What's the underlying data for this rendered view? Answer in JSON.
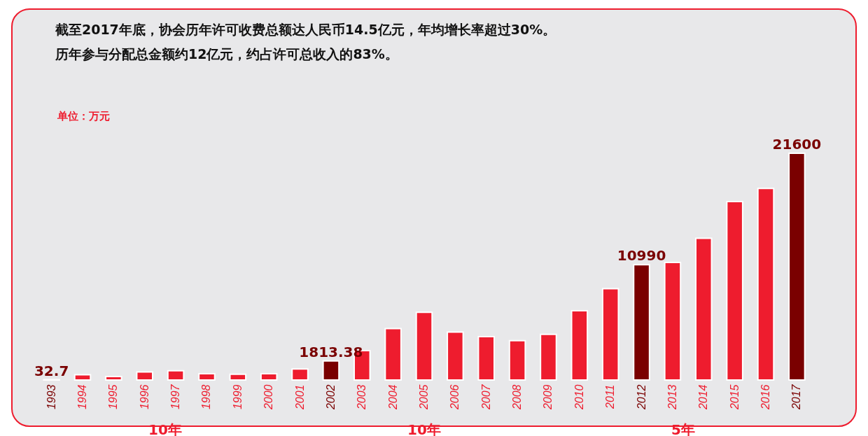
{
  "chart_data": {
    "type": "bar",
    "title": "截至2017年底，协会历年许可收费总额达人民币14.5亿元，年均增长率超过30%。",
    "subtitle": "历年参与分配总金额约12亿元，约占许可总收入的83%。",
    "ylabel": "单位：万元",
    "categories": [
      "1993",
      "1994",
      "1995",
      "1996",
      "1997",
      "1998",
      "1999",
      "2000",
      "2001",
      "2002",
      "2003",
      "2004",
      "2005",
      "2006",
      "2007",
      "2008",
      "2009",
      "2010",
      "2011",
      "2012",
      "2013",
      "2014",
      "2015",
      "2016",
      "2017"
    ],
    "values": [
      32.7,
      500,
      330,
      770,
      880,
      600,
      550,
      600,
      1050,
      1813.38,
      2800,
      4900,
      6450,
      4570,
      4130,
      3750,
      4350,
      6600,
      8700,
      10990,
      11200,
      13500,
      17000,
      18250,
      21600
    ],
    "colors": [
      "#7a0000",
      "#ee1c2e",
      "#ee1c2e",
      "#ee1c2e",
      "#ee1c2e",
      "#ee1c2e",
      "#ee1c2e",
      "#ee1c2e",
      "#ee1c2e",
      "#7a0000",
      "#ee1c2e",
      "#ee1c2e",
      "#ee1c2e",
      "#ee1c2e",
      "#ee1c2e",
      "#ee1c2e",
      "#ee1c2e",
      "#ee1c2e",
      "#ee1c2e",
      "#7a0000",
      "#ee1c2e",
      "#ee1c2e",
      "#ee1c2e",
      "#ee1c2e",
      "#7a0000"
    ],
    "value_labels": [
      "32.7",
      null,
      null,
      null,
      null,
      null,
      null,
      null,
      null,
      "1813.38",
      null,
      null,
      null,
      null,
      null,
      null,
      null,
      null,
      null,
      "10990",
      null,
      null,
      null,
      null,
      "21600"
    ],
    "annotations": [
      "10年",
      "10年",
      "5年"
    ],
    "grid": false
  }
}
